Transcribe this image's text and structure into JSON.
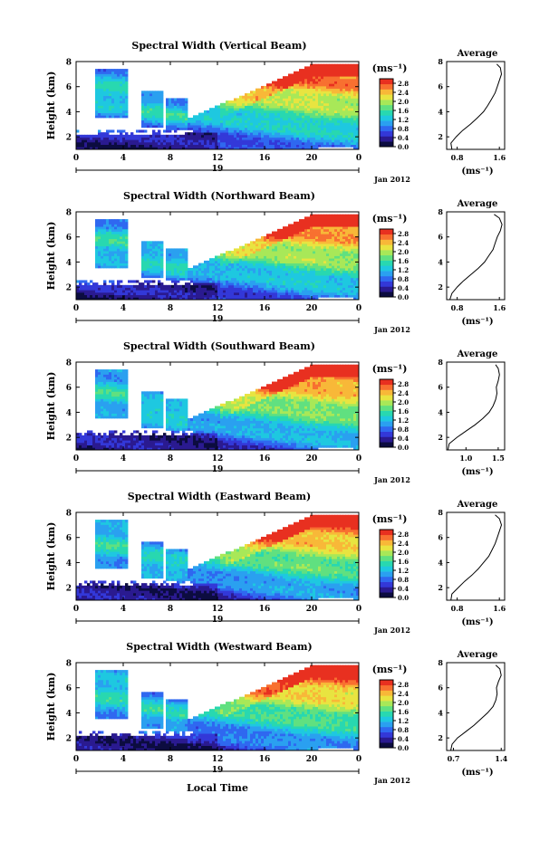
{
  "chart_data": [
    {
      "type": "heatmap",
      "title": "Spectral Width (Vertical Beam)",
      "ylabel": "Height (km)",
      "xlabel": "",
      "x_ticks": [
        "0",
        "4",
        "8",
        "12",
        "16",
        "20",
        "0"
      ],
      "x_range": [
        0,
        24
      ],
      "y_ticks": [
        "2",
        "4",
        "6",
        "8"
      ],
      "y_range": [
        1,
        8
      ],
      "date_day": "19",
      "date_month": "Jan 2012",
      "colorbar": {
        "unit": "(ms⁻¹)",
        "ticks": [
          "0.0",
          "0.4",
          "0.8",
          "1.2",
          "1.6",
          "2.0",
          "2.4",
          "2.8"
        ],
        "range": [
          0,
          3.0
        ]
      },
      "average": {
        "title": "Average",
        "xlabel": "(ms⁻¹)",
        "x_ticks": [
          "0.8",
          "1.6"
        ],
        "x_range": [
          0.6,
          1.7
        ],
        "y_ticks": [
          "2",
          "4",
          "6",
          "8"
        ],
        "height": [
          1.0,
          1.5,
          2.0,
          2.5,
          3.0,
          3.5,
          4.0,
          4.5,
          5.0,
          5.5,
          6.0,
          6.5,
          7.0,
          7.5,
          7.8
        ],
        "width": [
          0.7,
          0.68,
          0.78,
          0.9,
          1.05,
          1.18,
          1.3,
          1.38,
          1.45,
          1.52,
          1.56,
          1.6,
          1.64,
          1.62,
          1.55
        ]
      }
    },
    {
      "type": "heatmap",
      "title": "Spectral Width (Northward Beam)",
      "ylabel": "Height (km)",
      "xlabel": "",
      "x_ticks": [
        "0",
        "4",
        "8",
        "12",
        "16",
        "20",
        "0"
      ],
      "x_range": [
        0,
        24
      ],
      "y_ticks": [
        "2",
        "4",
        "6",
        "8"
      ],
      "y_range": [
        1,
        8
      ],
      "date_day": "19",
      "date_month": "Jan 2012",
      "colorbar": {
        "unit": "(ms⁻¹)",
        "ticks": [
          "0.0",
          "0.4",
          "0.8",
          "1.2",
          "1.6",
          "2.0",
          "2.4",
          "2.8"
        ],
        "range": [
          0,
          3.0
        ]
      },
      "average": {
        "title": "Average",
        "xlabel": "(ms⁻¹)",
        "x_ticks": [
          "0.8",
          "1.6"
        ],
        "x_range": [
          0.6,
          1.7
        ],
        "y_ticks": [
          "2",
          "4",
          "6",
          "8"
        ],
        "height": [
          1.0,
          1.5,
          2.0,
          2.5,
          3.0,
          3.5,
          4.0,
          4.5,
          5.0,
          5.5,
          6.0,
          6.5,
          7.0,
          7.5,
          7.8
        ],
        "width": [
          0.66,
          0.7,
          0.8,
          0.92,
          1.06,
          1.2,
          1.32,
          1.4,
          1.48,
          1.52,
          1.56,
          1.62,
          1.65,
          1.6,
          1.5
        ]
      }
    },
    {
      "type": "heatmap",
      "title": "Spectral Width (Southward Beam)",
      "ylabel": "Height (km)",
      "xlabel": "",
      "x_ticks": [
        "0",
        "4",
        "8",
        "12",
        "16",
        "20",
        "0"
      ],
      "x_range": [
        0,
        24
      ],
      "y_ticks": [
        "2",
        "4",
        "6",
        "8"
      ],
      "y_range": [
        1,
        8
      ],
      "date_day": "19",
      "date_month": "Jan 2012",
      "colorbar": {
        "unit": "(ms⁻¹)",
        "ticks": [
          "0.0",
          "0.4",
          "0.8",
          "1.2",
          "1.6",
          "2.0",
          "2.4",
          "2.8"
        ],
        "range": [
          0,
          3.0
        ]
      },
      "average": {
        "title": "Average",
        "xlabel": "(ms⁻¹)",
        "x_ticks": [
          "1.0",
          "1.5"
        ],
        "x_range": [
          0.7,
          1.6
        ],
        "y_ticks": [
          "2",
          "4",
          "6",
          "8"
        ],
        "height": [
          1.0,
          1.5,
          2.0,
          2.5,
          3.0,
          3.5,
          4.0,
          4.5,
          5.0,
          5.5,
          6.0,
          6.5,
          7.0,
          7.5,
          7.8
        ],
        "width": [
          0.72,
          0.74,
          0.86,
          1.0,
          1.14,
          1.26,
          1.36,
          1.42,
          1.46,
          1.48,
          1.47,
          1.5,
          1.52,
          1.5,
          1.46
        ]
      }
    },
    {
      "type": "heatmap",
      "title": "Spectral Width (Eastward Beam)",
      "ylabel": "Height (km)",
      "xlabel": "",
      "x_ticks": [
        "0",
        "4",
        "8",
        "12",
        "16",
        "20",
        "0"
      ],
      "x_range": [
        0,
        24
      ],
      "y_ticks": [
        "2",
        "4",
        "6",
        "8"
      ],
      "y_range": [
        1,
        8
      ],
      "date_day": "19",
      "date_month": "Jan 2012",
      "colorbar": {
        "unit": "(ms⁻¹)",
        "ticks": [
          "0.0",
          "0.4",
          "0.8",
          "1.2",
          "1.6",
          "2.0",
          "2.4",
          "2.8"
        ],
        "range": [
          0,
          3.0
        ]
      },
      "average": {
        "title": "Average",
        "xlabel": "(ms⁻¹)",
        "x_ticks": [
          "0.8",
          "1.6"
        ],
        "x_range": [
          0.6,
          1.7
        ],
        "y_ticks": [
          "2",
          "4",
          "6",
          "8"
        ],
        "height": [
          1.0,
          1.5,
          2.0,
          2.5,
          3.0,
          3.5,
          4.0,
          4.5,
          5.0,
          5.5,
          6.0,
          6.5,
          7.0,
          7.5,
          7.8
        ],
        "width": [
          0.68,
          0.7,
          0.82,
          0.94,
          1.08,
          1.2,
          1.3,
          1.4,
          1.46,
          1.52,
          1.56,
          1.6,
          1.64,
          1.6,
          1.52
        ]
      }
    },
    {
      "type": "heatmap",
      "title": "Spectral Width (Westward Beam)",
      "ylabel": "Height (km)",
      "xlabel": "Local Time",
      "x_ticks": [
        "0",
        "4",
        "8",
        "12",
        "16",
        "20",
        "0"
      ],
      "x_range": [
        0,
        24
      ],
      "y_ticks": [
        "2",
        "4",
        "6",
        "8"
      ],
      "y_range": [
        1,
        8
      ],
      "date_day": "19",
      "date_month": "Jan 2012",
      "colorbar": {
        "unit": "(ms⁻¹)",
        "ticks": [
          "0.0",
          "0.4",
          "0.8",
          "1.2",
          "1.6",
          "2.0",
          "2.4",
          "2.8"
        ],
        "range": [
          0,
          3.0
        ]
      },
      "average": {
        "title": "Average",
        "xlabel": "(ms⁻¹)",
        "x_ticks": [
          "0.7",
          "1.4"
        ],
        "x_range": [
          0.6,
          1.45
        ],
        "y_ticks": [
          "2",
          "4",
          "6",
          "8"
        ],
        "height": [
          1.0,
          1.5,
          2.0,
          2.5,
          3.0,
          3.5,
          4.0,
          4.5,
          5.0,
          5.5,
          6.0,
          6.5,
          7.0,
          7.5,
          7.8
        ],
        "width": [
          0.66,
          0.68,
          0.76,
          0.88,
          1.0,
          1.1,
          1.2,
          1.28,
          1.32,
          1.34,
          1.33,
          1.36,
          1.4,
          1.38,
          1.32
        ]
      }
    }
  ],
  "colors": {
    "scale": [
      "#0c0c40",
      "#2a1a90",
      "#3338d8",
      "#2f68f0",
      "#2aa0f0",
      "#1ec8e0",
      "#28d8b0",
      "#60e080",
      "#a8e858",
      "#e8e440",
      "#f8b838",
      "#f87030",
      "#e83020"
    ]
  }
}
